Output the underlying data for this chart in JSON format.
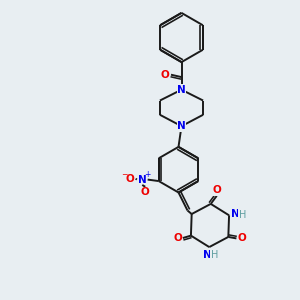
{
  "background_color": "#e8eef2",
  "bond_color": "#1a1a1a",
  "N_color": "#0000ee",
  "O_color": "#ee0000",
  "H_color": "#5f9ea0",
  "figsize": [
    3.0,
    3.0
  ],
  "dpi": 100,
  "xlim": [
    0,
    10
  ],
  "ylim": [
    0,
    10
  ]
}
